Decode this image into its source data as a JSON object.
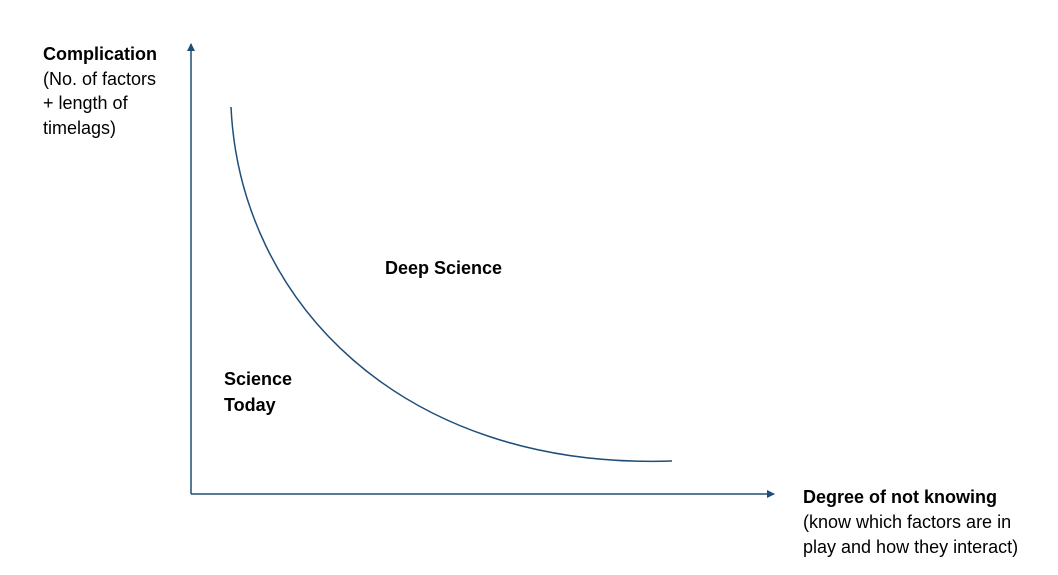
{
  "y_axis": {
    "title": "Complication",
    "subtitle_lines": [
      "(No. of factors",
      "+ length of",
      "timelags)"
    ]
  },
  "x_axis": {
    "title": "Degree of not knowing",
    "subtitle_lines": [
      "(know which factors are in",
      "play and how they interact)"
    ]
  },
  "regions": [
    {
      "label_lines": [
        "Deep Science"
      ]
    },
    {
      "label_lines": [
        "Science",
        "Today"
      ]
    }
  ]
}
